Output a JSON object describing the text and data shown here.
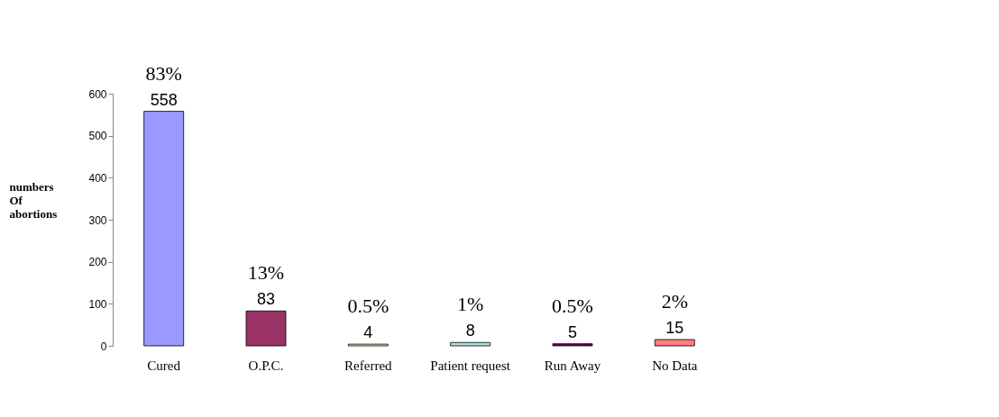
{
  "chart_data": {
    "type": "bar",
    "ylabel": "numbers Of abortions",
    "categories": [
      "Cured",
      "O.P.C.",
      "Referred",
      "Patient request",
      "Run Away",
      "No Data"
    ],
    "values": [
      558,
      83,
      4,
      8,
      5,
      15
    ],
    "colors": [
      "#9999ff",
      "#993366",
      "#e6e0a8",
      "#a8e0e0",
      "#660066",
      "#ff7f7f"
    ],
    "ylim": [
      0,
      600
    ],
    "yticks": [
      0,
      100,
      200,
      300,
      400,
      500,
      600
    ],
    "grid": false,
    "data_labels": true,
    "annotations": [
      {
        "text": "83%",
        "x": "Cured",
        "y": 558
      },
      {
        "text": "13%",
        "x": "O.P.C.",
        "y": 83
      },
      {
        "text": "0.5%",
        "x": "Referred",
        "y": 4
      },
      {
        "text": "1%",
        "x": "Patient request",
        "y": 8
      },
      {
        "text": "0.5%",
        "x": "Run Away",
        "y": 5
      },
      {
        "text": "2%",
        "x": "No Data",
        "y": 15
      }
    ]
  }
}
